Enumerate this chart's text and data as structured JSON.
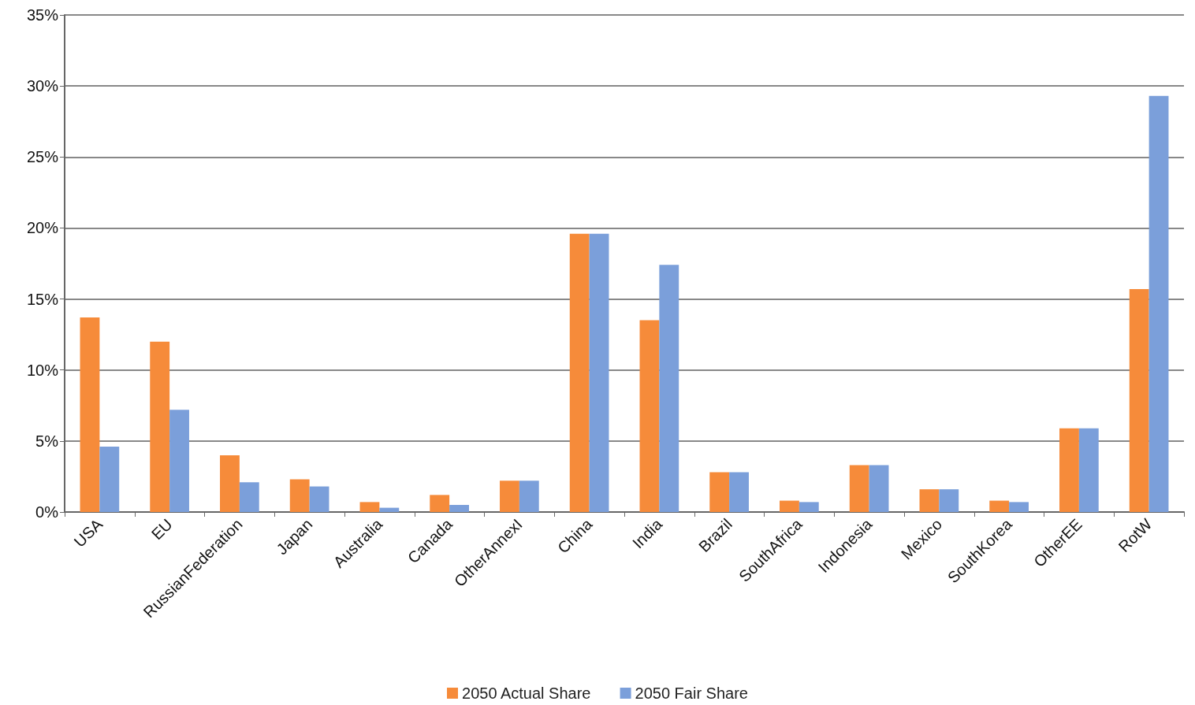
{
  "chart_data": {
    "type": "bar",
    "categories": [
      "USA",
      "EU",
      "RussianFederation",
      "Japan",
      "Australia",
      "Canada",
      "OtherAnnexI",
      "China",
      "India",
      "Brazil",
      "SouthAfrica",
      "Indonesia",
      "Mexico",
      "SouthKorea",
      "OtherEE",
      "RotW"
    ],
    "series": [
      {
        "name": "2050 Actual Share",
        "color": "#f68b3a",
        "values": [
          13.7,
          12.0,
          4.0,
          2.3,
          0.7,
          1.2,
          2.2,
          19.6,
          13.5,
          2.8,
          0.8,
          3.3,
          1.6,
          0.8,
          5.9,
          15.7
        ]
      },
      {
        "name": "2050 Fair Share",
        "color": "#7b9fda",
        "values": [
          4.6,
          7.2,
          2.1,
          1.8,
          0.3,
          0.5,
          2.2,
          19.6,
          17.4,
          2.8,
          0.7,
          3.3,
          1.6,
          0.7,
          5.9,
          29.3
        ]
      }
    ],
    "ylim": [
      0,
      35
    ],
    "yticks": [
      {
        "value": 0,
        "label": "0%"
      },
      {
        "value": 5,
        "label": "5%"
      },
      {
        "value": 10,
        "label": "10%"
      },
      {
        "value": 15,
        "label": "15%"
      },
      {
        "value": 20,
        "label": "20%"
      },
      {
        "value": 25,
        "label": "25%"
      },
      {
        "value": 30,
        "label": "30%"
      },
      {
        "value": 35,
        "label": "35%"
      }
    ],
    "grid": "y",
    "legend": "bottom"
  }
}
